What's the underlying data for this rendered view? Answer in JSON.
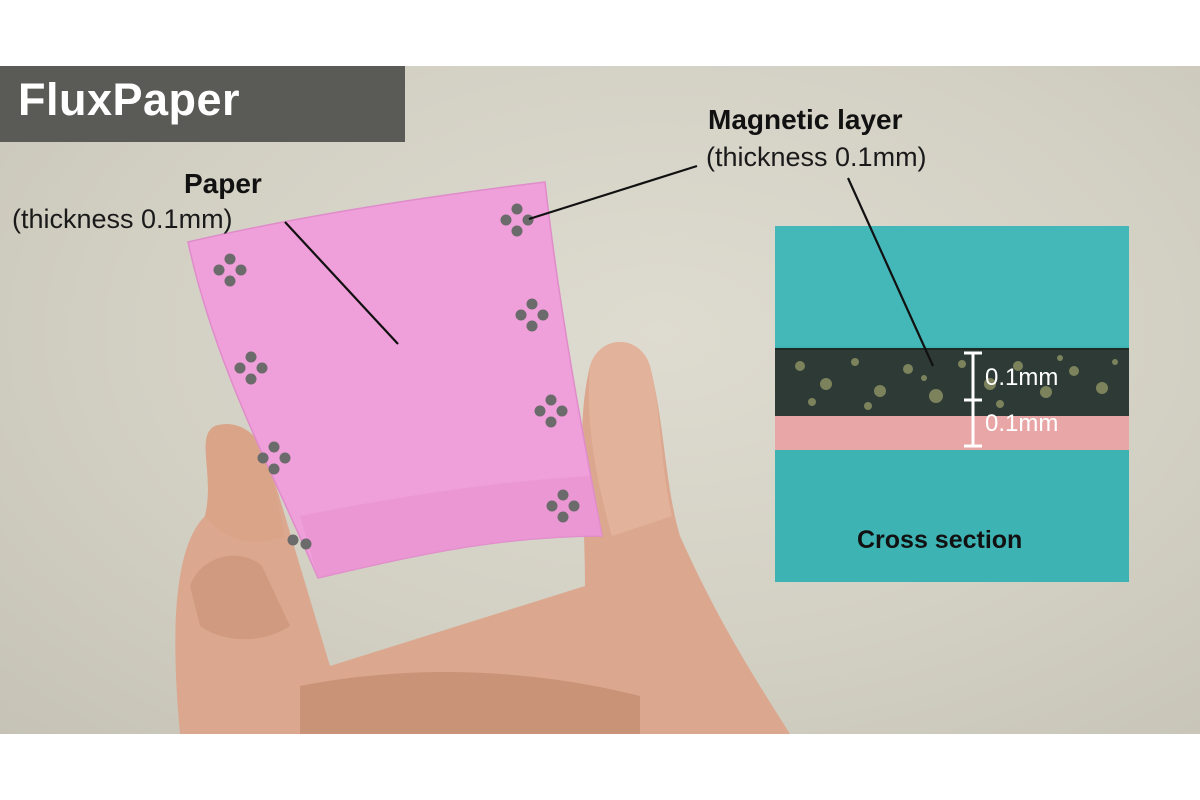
{
  "title": "FluxPaper",
  "paper_label": {
    "name": "Paper",
    "detail": "(thickness 0.1mm)"
  },
  "magnetic_label": {
    "name": "Magnetic layer",
    "detail": "(thickness 0.1mm)"
  },
  "cross_section": {
    "caption": "Cross section",
    "measurements": [
      "0.1mm",
      "0.1mm"
    ]
  },
  "colors": {
    "paper": "#ef9fd9",
    "magnetic_dot": "#6b6b6b",
    "micrograph_bg": "#3eb3b4",
    "paper_layer": "#e9a6a6",
    "magnetic_layer": "#2d3a35"
  }
}
